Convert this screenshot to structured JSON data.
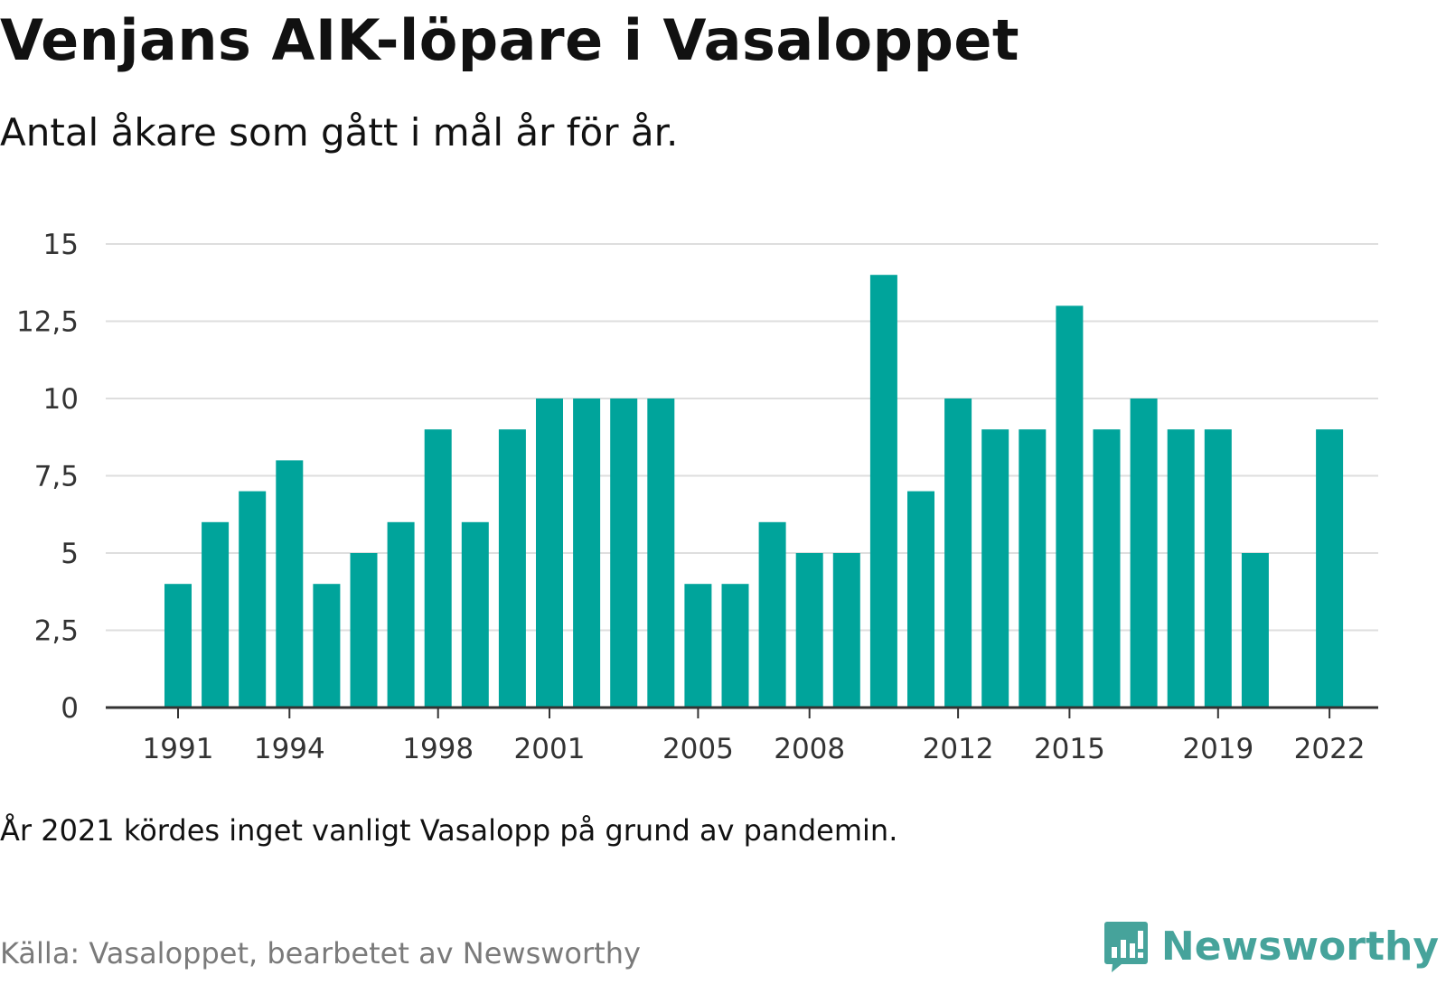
{
  "title": "Venjans AIK-löpare i Vasaloppet",
  "subtitle": "Antal åkare som gått i mål år för år.",
  "note": "År 2021 kördes inget vanligt Vasalopp på grund av pandemin.",
  "source": "Källa: Vasaloppet, bearbetet av Newsworthy",
  "brand": {
    "name": "Newsworthy",
    "icon": "newsworthy-logo-icon",
    "color": "#46a39b"
  },
  "chart_data": {
    "type": "bar",
    "title": "Venjans AIK-löpare i Vasaloppet",
    "subtitle": "Antal åkare som gått i mål år för år.",
    "categories": [
      1991,
      1992,
      1993,
      1994,
      1995,
      1996,
      1997,
      1998,
      1999,
      2000,
      2001,
      2002,
      2003,
      2004,
      2005,
      2006,
      2007,
      2008,
      2009,
      2010,
      2011,
      2012,
      2013,
      2014,
      2015,
      2016,
      2017,
      2018,
      2019,
      2020,
      2021,
      2022
    ],
    "values": [
      4,
      6,
      7,
      8,
      4,
      5,
      6,
      9,
      6,
      9,
      10,
      10,
      10,
      10,
      4,
      4,
      6,
      5,
      5,
      14,
      7,
      10,
      9,
      9,
      13,
      9,
      10,
      9,
      9,
      5,
      null,
      9
    ],
    "x_tick_labels": [
      "1991",
      "1994",
      "1998",
      "2001",
      "2005",
      "2008",
      "2012",
      "2015",
      "2019",
      "2022"
    ],
    "y_ticks": [
      0,
      2.5,
      5,
      7.5,
      10,
      12.5,
      15
    ],
    "y_tick_labels": [
      "0",
      "2,5",
      "5",
      "7,5",
      "10",
      "12,5",
      "15"
    ],
    "ylim": [
      0,
      15
    ],
    "xlabel": "",
    "ylabel": "",
    "grid": true,
    "legend": "none",
    "bar_color": "#00a49b",
    "grid_color": "#dedede",
    "axis_color": "#333333"
  }
}
